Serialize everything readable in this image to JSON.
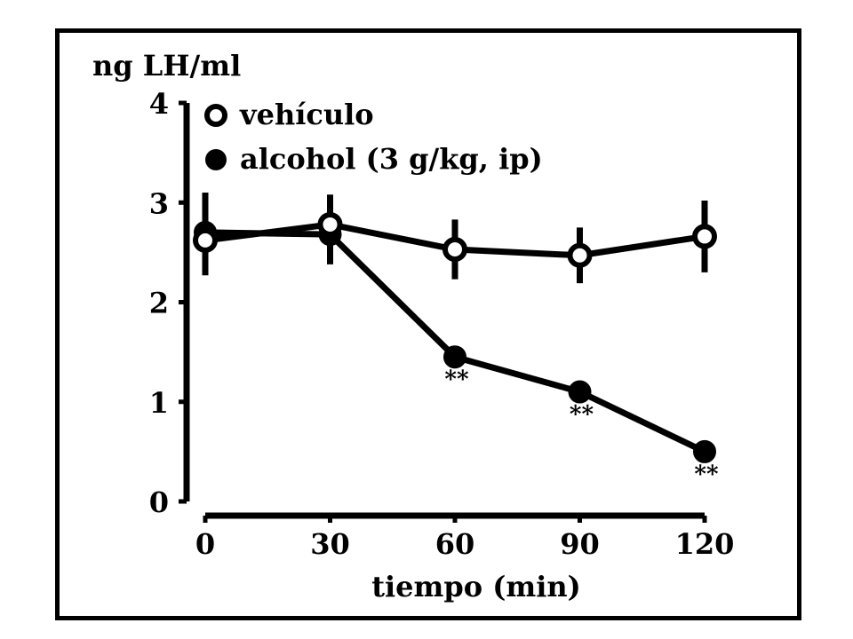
{
  "chart_data": {
    "type": "line",
    "ylabel": "ng LH/ml",
    "xlabel": "tiempo (min)",
    "x": [
      0,
      30,
      60,
      90,
      120
    ],
    "xticks": [
      "0",
      "30",
      "60",
      "90",
      "120"
    ],
    "yticks": [
      "0",
      "1",
      "2",
      "3",
      "4"
    ],
    "xlim": [
      0,
      120
    ],
    "ylim": [
      0,
      4
    ],
    "grid": false,
    "legend_position": "top-left",
    "series": [
      {
        "name": "vehículo",
        "marker": "open-circle",
        "values": [
          2.62,
          2.78,
          2.53,
          2.47,
          2.66
        ],
        "err": [
          0.35,
          0.3,
          0.3,
          0.28,
          0.36
        ],
        "color": "#000000"
      },
      {
        "name": "alcohol (3 g/kg, ip)",
        "marker": "filled-circle",
        "values": [
          2.7,
          2.68,
          1.45,
          1.1,
          0.5
        ],
        "err": [
          0.4,
          0.3,
          0.0,
          0.0,
          0.0
        ],
        "color": "#000000"
      }
    ],
    "annotations": [
      {
        "x": 60,
        "text": "**"
      },
      {
        "x": 90,
        "text": "**"
      },
      {
        "x": 120,
        "text": "**"
      }
    ]
  }
}
